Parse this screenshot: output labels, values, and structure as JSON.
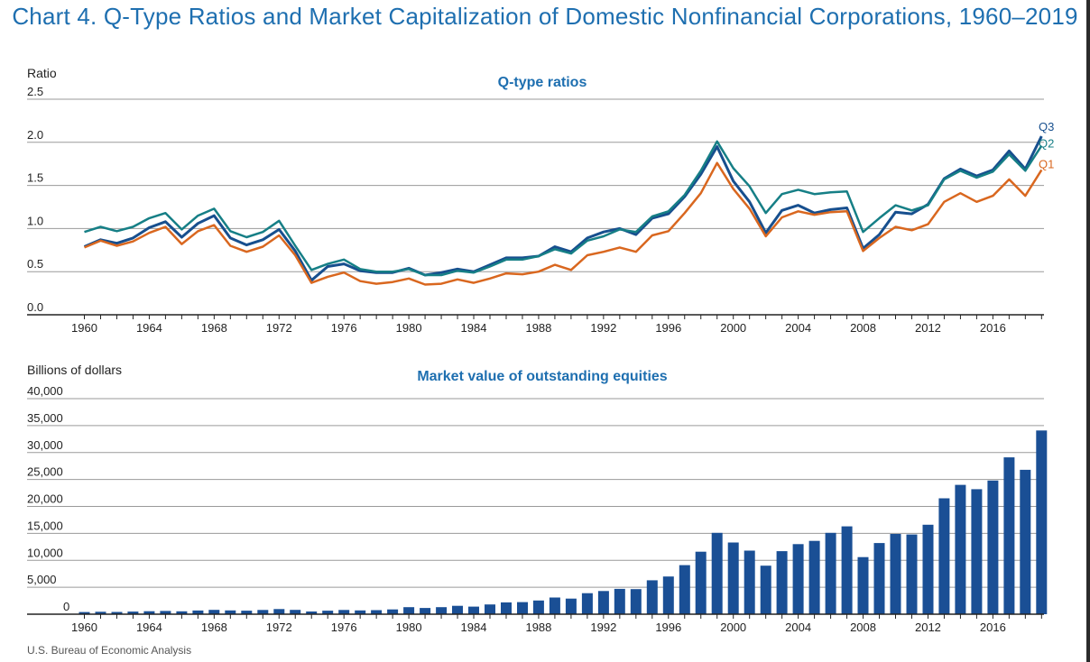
{
  "title": "Chart 4. Q-Type Ratios and Market Capitalization of Domestic Nonfinancial Corporations, 1960–2019",
  "source": "U.S. Bureau of Economic Analysis",
  "colors": {
    "title": "#1e6fb0",
    "Q1": "#d9671f",
    "Q2": "#167f86",
    "Q3": "#174f8e",
    "bars": "#1a4f95",
    "grid": "#9a9a9a"
  },
  "chart_data": [
    {
      "type": "line",
      "title": "Q-type ratios",
      "ylabel": "Ratio",
      "ylim": [
        0,
        2.5
      ],
      "yticks": [
        0.0,
        0.5,
        1.0,
        1.5,
        2.0,
        2.5
      ],
      "ytick_labels": [
        "0.0",
        "0.5",
        "1.0",
        "1.5",
        "2.0",
        "2.5"
      ],
      "xtick_labels": [
        "1960",
        "1964",
        "1968",
        "1972",
        "1976",
        "1980",
        "1984",
        "1988",
        "1992",
        "1996",
        "2000",
        "2004",
        "2008",
        "2012",
        "2016"
      ],
      "grid": "horizontal",
      "x": [
        1960,
        1961,
        1962,
        1963,
        1964,
        1965,
        1966,
        1967,
        1968,
        1969,
        1970,
        1971,
        1972,
        1973,
        1974,
        1975,
        1976,
        1977,
        1978,
        1979,
        1980,
        1981,
        1982,
        1983,
        1984,
        1985,
        1986,
        1987,
        1988,
        1989,
        1990,
        1991,
        1992,
        1993,
        1994,
        1995,
        1996,
        1997,
        1998,
        1999,
        2000,
        2001,
        2002,
        2003,
        2004,
        2005,
        2006,
        2007,
        2008,
        2009,
        2010,
        2011,
        2012,
        2013,
        2014,
        2015,
        2016,
        2017,
        2018,
        2019
      ],
      "series": [
        {
          "name": "Q3",
          "values": [
            0.79,
            0.87,
            0.83,
            0.89,
            1.01,
            1.08,
            0.9,
            1.06,
            1.15,
            0.89,
            0.81,
            0.87,
            0.99,
            0.74,
            0.4,
            0.56,
            0.59,
            0.51,
            0.49,
            0.49,
            0.54,
            0.46,
            0.49,
            0.53,
            0.5,
            0.58,
            0.66,
            0.66,
            0.68,
            0.79,
            0.73,
            0.89,
            0.96,
            1.0,
            0.93,
            1.12,
            1.17,
            1.37,
            1.63,
            1.95,
            1.55,
            1.31,
            0.95,
            1.21,
            1.27,
            1.18,
            1.22,
            1.24,
            0.77,
            0.93,
            1.19,
            1.17,
            1.28,
            1.58,
            1.69,
            1.61,
            1.68,
            1.9,
            1.69,
            2.07
          ]
        },
        {
          "name": "Q2",
          "values": [
            0.96,
            1.02,
            0.97,
            1.02,
            1.12,
            1.18,
            0.99,
            1.15,
            1.23,
            0.97,
            0.9,
            0.96,
            1.09,
            0.8,
            0.52,
            0.59,
            0.64,
            0.53,
            0.5,
            0.5,
            0.53,
            0.46,
            0.46,
            0.51,
            0.49,
            0.56,
            0.64,
            0.64,
            0.68,
            0.76,
            0.71,
            0.86,
            0.91,
            0.99,
            0.96,
            1.14,
            1.2,
            1.39,
            1.67,
            2.01,
            1.7,
            1.49,
            1.18,
            1.4,
            1.45,
            1.4,
            1.42,
            1.43,
            0.96,
            1.12,
            1.27,
            1.21,
            1.27,
            1.57,
            1.67,
            1.59,
            1.66,
            1.86,
            1.67,
            1.96
          ]
        },
        {
          "name": "Q1",
          "values": [
            0.78,
            0.86,
            0.8,
            0.85,
            0.95,
            1.02,
            0.82,
            0.97,
            1.04,
            0.8,
            0.73,
            0.79,
            0.92,
            0.69,
            0.37,
            0.44,
            0.49,
            0.39,
            0.36,
            0.38,
            0.42,
            0.35,
            0.36,
            0.41,
            0.37,
            0.42,
            0.48,
            0.47,
            0.5,
            0.58,
            0.52,
            0.69,
            0.73,
            0.78,
            0.73,
            0.92,
            0.97,
            1.18,
            1.41,
            1.76,
            1.46,
            1.23,
            0.91,
            1.13,
            1.2,
            1.16,
            1.19,
            1.2,
            0.74,
            0.89,
            1.02,
            0.98,
            1.05,
            1.31,
            1.41,
            1.31,
            1.38,
            1.57,
            1.38,
            1.68
          ]
        }
      ]
    },
    {
      "type": "bar",
      "title": "Market value of outstanding equities",
      "ylabel": "Billions of dollars",
      "ylim": [
        0,
        40000
      ],
      "yticks": [
        0,
        5000,
        10000,
        15000,
        20000,
        25000,
        30000,
        35000,
        40000
      ],
      "ytick_labels": [
        "0",
        "5,000",
        "10,000",
        "15,000",
        "20,000",
        "25,000",
        "30,000",
        "35,000",
        "40,000"
      ],
      "xtick_labels": [
        "1960",
        "1964",
        "1968",
        "1972",
        "1976",
        "1980",
        "1984",
        "1988",
        "1992",
        "1996",
        "2000",
        "2004",
        "2008",
        "2012",
        "2016"
      ],
      "grid": "horizontal",
      "x": [
        1960,
        1961,
        1962,
        1963,
        1964,
        1965,
        1966,
        1967,
        1968,
        1969,
        1970,
        1971,
        1972,
        1973,
        1974,
        1975,
        1976,
        1977,
        1978,
        1979,
        1980,
        1981,
        1982,
        1983,
        1984,
        1985,
        1986,
        1987,
        1988,
        1989,
        1990,
        1991,
        1992,
        1993,
        1994,
        1995,
        1996,
        1997,
        1998,
        1999,
        2000,
        2001,
        2002,
        2003,
        2004,
        2005,
        2006,
        2007,
        2008,
        2009,
        2010,
        2011,
        2012,
        2013,
        2014,
        2015,
        2016,
        2017,
        2018,
        2019
      ],
      "values": [
        400,
        450,
        420,
        480,
        550,
        600,
        530,
        680,
        800,
        700,
        650,
        780,
        950,
        800,
        500,
        650,
        780,
        700,
        750,
        880,
        1300,
        1150,
        1300,
        1550,
        1400,
        1800,
        2200,
        2250,
        2550,
        3100,
        2900,
        3900,
        4300,
        4700,
        4650,
        6300,
        7000,
        9100,
        11600,
        15100,
        13300,
        11800,
        9000,
        11700,
        13000,
        13600,
        15100,
        16300,
        10600,
        13200,
        14900,
        14800,
        16600,
        21500,
        24000,
        23200,
        24800,
        29100,
        26800,
        34100
      ]
    }
  ]
}
